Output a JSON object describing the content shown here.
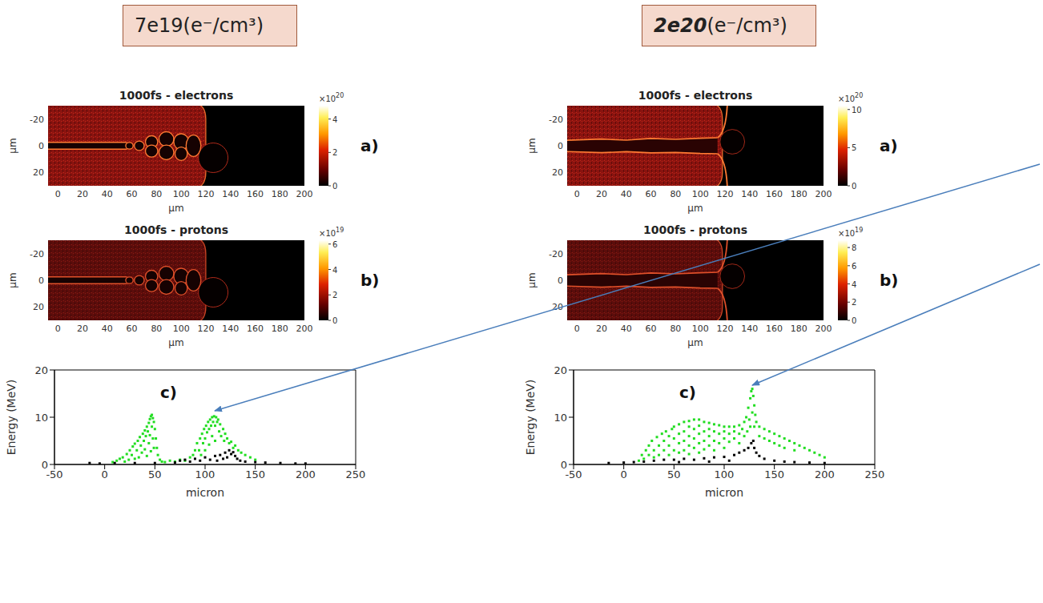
{
  "headers": [
    {
      "density": "7e19",
      "units": "(e⁻/cm³)"
    },
    {
      "density": "2e20",
      "units": "(e⁻/cm³)"
    }
  ],
  "maps": [
    [
      {
        "title": "1000fs - electrons",
        "label": "a)",
        "xlim": [
          -8,
          200
        ],
        "xticks": [
          0,
          20,
          40,
          60,
          80,
          100,
          120,
          140,
          160,
          180,
          200
        ],
        "ylim": [
          -30,
          30
        ],
        "yticks": [
          -20,
          0,
          20
        ],
        "xlabel": "μm",
        "ylabel": "μm",
        "colorbar": {
          "range": [
            0,
            4.8
          ],
          "ticks": [
            0,
            2,
            4
          ],
          "scale_label": {
            "base": "×10",
            "exponent": "20"
          }
        }
      },
      {
        "title": "1000fs - protons",
        "label": "b)",
        "xlim": [
          -8,
          200
        ],
        "xticks": [
          0,
          20,
          40,
          60,
          80,
          100,
          120,
          140,
          160,
          180,
          200
        ],
        "ylim": [
          -30,
          30
        ],
        "yticks": [
          -20,
          0,
          20
        ],
        "xlabel": "μm",
        "ylabel": "μm",
        "colorbar": {
          "range": [
            0,
            6.3
          ],
          "ticks": [
            0,
            2,
            4,
            6
          ],
          "scale_label": {
            "base": "×10",
            "exponent": "19"
          }
        }
      }
    ],
    [
      {
        "title": "1000fs - electrons",
        "label": "a)",
        "xlim": [
          -8,
          200
        ],
        "xticks": [
          0,
          20,
          40,
          60,
          80,
          100,
          120,
          140,
          160,
          180,
          200
        ],
        "ylim": [
          -30,
          30
        ],
        "yticks": [
          -20,
          0,
          20
        ],
        "xlabel": "μm",
        "ylabel": "μm",
        "colorbar": {
          "range": [
            0,
            10.5
          ],
          "ticks": [
            0,
            5,
            10
          ],
          "scale_label": {
            "base": "×10",
            "exponent": "20"
          }
        }
      },
      {
        "title": "1000fs - protons",
        "label": "b)",
        "xlim": [
          -8,
          200
        ],
        "xticks": [
          0,
          20,
          40,
          60,
          80,
          100,
          120,
          140,
          160,
          180,
          200
        ],
        "ylim": [
          -30,
          30
        ],
        "yticks": [
          -20,
          0,
          20
        ],
        "xlabel": "μm",
        "ylabel": "μm",
        "colorbar": {
          "range": [
            0,
            8.8
          ],
          "ticks": [
            0,
            2,
            4,
            6,
            8
          ],
          "scale_label": {
            "base": "×10",
            "exponent": "19"
          }
        }
      }
    ]
  ],
  "chart_data": [
    {
      "type": "scatter",
      "label": "c)",
      "xlabel": "micron",
      "ylabel": "Energy (MeV)",
      "xlim": [
        -50,
        250
      ],
      "xticks": [
        -50,
        0,
        50,
        100,
        150,
        200,
        250
      ],
      "ylim": [
        0,
        20
      ],
      "yticks": [
        0,
        10,
        20
      ],
      "series": [
        {
          "color": "#22dd22",
          "marker": "square",
          "x": [
            8,
            12,
            15,
            18,
            20,
            22,
            24,
            25,
            27,
            28,
            30,
            30,
            32,
            33,
            34,
            35,
            36,
            37,
            38,
            39,
            40,
            40,
            41,
            42,
            42,
            43,
            44,
            44,
            45,
            45,
            46,
            46,
            47,
            47,
            48,
            48,
            49,
            49,
            50,
            51,
            52,
            53,
            55,
            57,
            60,
            65,
            70,
            75,
            80,
            85,
            88,
            90,
            92,
            94,
            95,
            96,
            97,
            98,
            99,
            100,
            100,
            101,
            102,
            103,
            104,
            104,
            105,
            106,
            107,
            107,
            108,
            109,
            110,
            110,
            111,
            112,
            113,
            114,
            115,
            116,
            118,
            119,
            120,
            122,
            124,
            126,
            128,
            130,
            133,
            136,
            140,
            145,
            150
          ],
          "values": [
            0.5,
            0.8,
            1.2,
            1.5,
            0.6,
            2.2,
            1.0,
            3.0,
            2.0,
            3.8,
            1.2,
            4.4,
            3.0,
            5.0,
            1.5,
            5.8,
            4.0,
            2.5,
            6.5,
            5.0,
            7.2,
            3.2,
            6.0,
            8.0,
            1.8,
            7.0,
            8.8,
            4.5,
            9.6,
            6.2,
            10.2,
            2.8,
            10.5,
            8.0,
            9.8,
            5.5,
            9.0,
            3.5,
            7.5,
            5.5,
            3.5,
            2.0,
            1.0,
            0.6,
            0.5,
            0.8,
            0.6,
            1.0,
            0.8,
            1.5,
            2.0,
            3.0,
            4.5,
            3.0,
            5.5,
            2.0,
            6.5,
            4.5,
            7.5,
            5.5,
            3.0,
            8.2,
            6.8,
            9.0,
            7.5,
            4.2,
            9.5,
            8.2,
            10.0,
            6.0,
            9.0,
            10.2,
            8.2,
            5.0,
            10.0,
            9.0,
            9.5,
            7.0,
            8.5,
            6.0,
            7.5,
            5.0,
            6.5,
            5.5,
            4.5,
            4.8,
            3.5,
            4.0,
            3.0,
            2.5,
            2.0,
            1.5,
            1.0
          ]
        },
        {
          "color": "#000000",
          "marker": "square",
          "x": [
            -15,
            -5,
            10,
            30,
            50,
            70,
            75,
            80,
            85,
            90,
            95,
            100,
            105,
            110,
            112,
            115,
            118,
            120,
            122,
            124,
            126,
            128,
            130,
            132,
            135,
            140,
            150,
            160,
            175,
            190,
            200
          ],
          "values": [
            0.3,
            0.2,
            0.3,
            0.3,
            0.3,
            0.4,
            0.8,
            1.0,
            0.6,
            1.2,
            0.8,
            1.5,
            1.0,
            1.8,
            0.8,
            2.0,
            1.2,
            2.5,
            1.5,
            3.0,
            2.2,
            2.6,
            1.8,
            1.2,
            0.8,
            0.6,
            0.5,
            0.4,
            0.3,
            0.2,
            0.2
          ]
        }
      ]
    },
    {
      "type": "scatter",
      "label": "c)",
      "xlabel": "micron",
      "ylabel": "Energy (MeV)",
      "xlim": [
        -50,
        250
      ],
      "xticks": [
        -50,
        0,
        50,
        100,
        150,
        200,
        250
      ],
      "ylim": [
        0,
        20
      ],
      "yticks": [
        0,
        10,
        20
      ],
      "series": [
        {
          "color": "#22dd22",
          "marker": "square",
          "x": [
            15,
            18,
            20,
            22,
            25,
            25,
            28,
            30,
            30,
            33,
            35,
            35,
            38,
            40,
            40,
            42,
            45,
            45,
            45,
            48,
            50,
            50,
            50,
            55,
            55,
            55,
            55,
            60,
            60,
            60,
            60,
            65,
            65,
            65,
            65,
            65,
            70,
            70,
            70,
            70,
            75,
            75,
            75,
            75,
            75,
            80,
            80,
            80,
            80,
            85,
            85,
            85,
            85,
            90,
            90,
            90,
            90,
            95,
            95,
            95,
            100,
            100,
            100,
            100,
            105,
            105,
            105,
            110,
            110,
            110,
            115,
            115,
            115,
            118,
            120,
            120,
            122,
            123,
            124,
            125,
            126,
            126,
            127,
            128,
            128,
            129,
            130,
            130,
            131,
            132,
            135,
            135,
            140,
            140,
            145,
            145,
            150,
            150,
            155,
            155,
            160,
            160,
            165,
            170,
            170,
            175,
            180,
            185,
            190,
            195,
            200
          ],
          "values": [
            0.8,
            2.0,
            1.2,
            3.0,
            2.0,
            4.0,
            5.0,
            3.0,
            1.5,
            5.8,
            4.0,
            2.0,
            6.5,
            5.0,
            3.0,
            7.0,
            6.0,
            4.0,
            2.0,
            7.5,
            8.0,
            5.5,
            3.0,
            8.5,
            6.5,
            4.5,
            2.5,
            9.0,
            7.0,
            5.0,
            3.0,
            9.2,
            8.0,
            6.0,
            4.0,
            2.2,
            9.5,
            7.5,
            5.5,
            3.5,
            9.5,
            8.2,
            6.5,
            4.5,
            2.5,
            9.0,
            7.0,
            5.0,
            3.2,
            8.8,
            7.5,
            6.0,
            4.0,
            8.5,
            7.0,
            5.0,
            3.0,
            8.3,
            6.5,
            4.5,
            8.0,
            7.0,
            5.5,
            3.5,
            8.0,
            6.5,
            4.8,
            8.0,
            7.0,
            5.5,
            8.3,
            6.5,
            4.5,
            7.5,
            9.0,
            6.0,
            10.0,
            7.0,
            12.0,
            9.5,
            14.0,
            8.0,
            15.5,
            16.0,
            11.0,
            14.5,
            12.5,
            8.0,
            10.5,
            9.0,
            8.0,
            6.0,
            7.5,
            5.5,
            7.0,
            5.0,
            6.5,
            4.5,
            6.0,
            4.0,
            5.5,
            3.5,
            5.0,
            4.5,
            3.0,
            4.0,
            3.5,
            3.0,
            2.5,
            2.0,
            1.5
          ]
        },
        {
          "color": "#000000",
          "marker": "square",
          "x": [
            -15,
            0,
            10,
            20,
            30,
            40,
            50,
            55,
            60,
            70,
            80,
            85,
            90,
            100,
            105,
            110,
            115,
            120,
            124,
            127,
            129,
            130,
            132,
            135,
            140,
            150,
            160,
            170,
            185,
            200
          ],
          "values": [
            0.3,
            0.4,
            0.5,
            0.6,
            0.8,
            1.0,
            1.0,
            0.5,
            1.2,
            1.0,
            1.3,
            0.6,
            1.5,
            1.6,
            0.8,
            2.0,
            2.5,
            3.0,
            3.5,
            4.5,
            5.0,
            3.5,
            2.5,
            1.8,
            1.2,
            0.8,
            0.6,
            0.5,
            0.4,
            0.3
          ]
        }
      ]
    }
  ]
}
